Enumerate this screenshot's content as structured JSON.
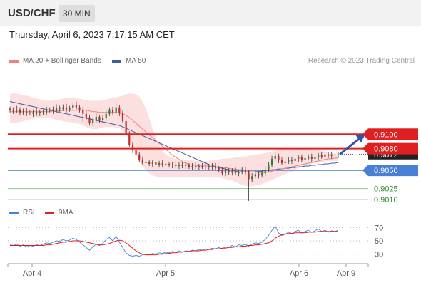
{
  "header": {
    "symbol": "USD/CHF",
    "timeframe": "30 MIN"
  },
  "datetime": "Thursday, April 6, 2023 7:17:15 AM CET",
  "legend": {
    "ma20": "MA 20 + Bollinger Bands",
    "ma50": "MA 50",
    "copyright": "Research © 2023 Trading Central"
  },
  "rsi_legend": {
    "rsi": "RSI",
    "ma": "9MA"
  },
  "colors": {
    "red": "#e02020",
    "blue": "#4a7fd6",
    "green": "#2e8b2e",
    "bb_fill": "#fbd3d3",
    "ma20": "#f08080",
    "ma50": "#3a5fa8",
    "bull": "#2e7d32",
    "bear": "#c62828"
  },
  "chart_data": [
    {
      "type": "candlestick",
      "title": "",
      "x_ticks": [
        "Apr 4",
        "Apr 5",
        "Apr 6",
        "Apr 9"
      ],
      "ylim": [
        0.9,
        0.9175
      ],
      "current_price": "0.9072",
      "levels": [
        {
          "value": 0.91,
          "label": "0.9100",
          "kind": "resistance"
        },
        {
          "value": 0.908,
          "label": "0.9080",
          "kind": "resistance"
        },
        {
          "value": 0.905,
          "label": "0.9050",
          "kind": "pivot"
        },
        {
          "value": 0.9025,
          "label": "0.9025",
          "kind": "support"
        },
        {
          "value": 0.901,
          "label": "0.9010",
          "kind": "support"
        }
      ],
      "closes": [
        0.9133,
        0.9132,
        0.9134,
        0.913,
        0.9131,
        0.9129,
        0.913,
        0.9128,
        0.9131,
        0.9129,
        0.913,
        0.9133,
        0.9134,
        0.9132,
        0.9136,
        0.9135,
        0.9137,
        0.9134,
        0.9136,
        0.914,
        0.9137,
        0.9134,
        0.9128,
        0.9123,
        0.9115,
        0.9119,
        0.9124,
        0.9119,
        0.9122,
        0.9128,
        0.9134,
        0.913,
        0.9137,
        0.9129,
        0.9118,
        0.9101,
        0.9085,
        0.9078,
        0.9072,
        0.9065,
        0.906,
        0.9062,
        0.9059,
        0.9061,
        0.9058,
        0.906,
        0.9057,
        0.9059,
        0.9057,
        0.9058,
        0.9056,
        0.9058,
        0.9056,
        0.9057,
        0.9055,
        0.9056,
        0.9054,
        0.9056,
        0.9055,
        0.9054,
        0.9056,
        0.9055,
        0.9053,
        0.9051,
        0.9046,
        0.905,
        0.9047,
        0.9049,
        0.9046,
        0.9048,
        0.905,
        0.9047,
        0.9038,
        0.9042,
        0.9045,
        0.9043,
        0.9046,
        0.9051,
        0.9058,
        0.9066,
        0.907,
        0.9064,
        0.906,
        0.9062,
        0.9065,
        0.9063,
        0.9066,
        0.9068,
        0.9065,
        0.9067,
        0.9069,
        0.9066,
        0.9068,
        0.9071,
        0.9069,
        0.9072,
        0.907,
        0.9072,
        0.9071,
        0.9072
      ],
      "ma20": [
        0.9131,
        0.9131,
        0.9131,
        0.9131,
        0.9131,
        0.9131,
        0.9131,
        0.9131,
        0.9131,
        0.9131,
        0.9131,
        0.9131,
        0.9131,
        0.9132,
        0.9132,
        0.9132,
        0.9133,
        0.9133,
        0.9133,
        0.9133,
        0.9133,
        0.9133,
        0.9133,
        0.9133,
        0.9132,
        0.9131,
        0.9131,
        0.913,
        0.913,
        0.913,
        0.913,
        0.913,
        0.913,
        0.9129,
        0.9128,
        0.9126,
        0.9123,
        0.9119,
        0.9115,
        0.9111,
        0.9107,
        0.9103,
        0.9099,
        0.9095,
        0.9091,
        0.9087,
        0.9083,
        0.9079,
        0.9075,
        0.9071,
        0.9068,
        0.9065,
        0.9062,
        0.906,
        0.9058,
        0.9057,
        0.9057,
        0.9056,
        0.9056,
        0.9056,
        0.9056,
        0.9055,
        0.9055,
        0.9055,
        0.9054,
        0.9054,
        0.9053,
        0.9052,
        0.9052,
        0.9051,
        0.9051,
        0.905,
        0.9049,
        0.9048,
        0.9048,
        0.9047,
        0.9047,
        0.9047,
        0.9048,
        0.9049,
        0.905,
        0.9051,
        0.9052,
        0.9053,
        0.9054,
        0.9055,
        0.9056,
        0.9057,
        0.9058,
        0.9059,
        0.906,
        0.9061,
        0.9062,
        0.9063,
        0.9064,
        0.9065,
        0.9066,
        0.9066,
        0.9067,
        0.9067
      ],
      "ma50": [
        0.9145,
        0.9144,
        0.9143,
        0.9142,
        0.9141,
        0.914,
        0.9139,
        0.9138,
        0.9137,
        0.9136,
        0.9135,
        0.9134,
        0.9133,
        0.9132,
        0.9131,
        0.913,
        0.9129,
        0.9128,
        0.9127,
        0.9126,
        0.9125,
        0.9124,
        0.9123,
        0.9122,
        0.9121,
        0.912,
        0.9119,
        0.9118,
        0.9117,
        0.9116,
        0.9115,
        0.9114,
        0.9113,
        0.9112,
        0.911,
        0.9108,
        0.9106,
        0.9104,
        0.9102,
        0.91,
        0.9098,
        0.9096,
        0.9094,
        0.9092,
        0.909,
        0.9088,
        0.9086,
        0.9084,
        0.9082,
        0.908,
        0.9078,
        0.9076,
        0.9074,
        0.9072,
        0.907,
        0.9068,
        0.9066,
        0.9064,
        0.9062,
        0.906,
        0.9058,
        0.9057,
        0.9055,
        0.9054,
        0.9053,
        0.9052,
        0.9051,
        0.905,
        0.9049,
        0.9048,
        0.9048,
        0.9048,
        0.9048,
        0.9048,
        0.9048,
        0.9049,
        0.9049,
        0.905,
        0.905,
        0.9051,
        0.9051,
        0.9052,
        0.9052,
        0.9053,
        0.9053,
        0.9054,
        0.9054,
        0.9055,
        0.9055,
        0.9056,
        0.9056,
        0.9057,
        0.9057,
        0.9058,
        0.9058,
        0.9059,
        0.9059,
        0.906,
        0.906,
        0.9061
      ],
      "bb_upper": [
        0.9155,
        0.9156,
        0.9156,
        0.9155,
        0.9154,
        0.9153,
        0.9152,
        0.915,
        0.9149,
        0.9148,
        0.9147,
        0.9146,
        0.9146,
        0.9146,
        0.9147,
        0.9148,
        0.9149,
        0.915,
        0.915,
        0.9151,
        0.915,
        0.9149,
        0.9148,
        0.9147,
        0.9146,
        0.9146,
        0.9146,
        0.9146,
        0.9147,
        0.9148,
        0.9149,
        0.915,
        0.9151,
        0.9152,
        0.9153,
        0.9155,
        0.9156,
        0.9156,
        0.9155,
        0.9152,
        0.9145,
        0.9135,
        0.9122,
        0.9108,
        0.9095,
        0.9084,
        0.9077,
        0.9072,
        0.9069,
        0.9067,
        0.9066,
        0.9065,
        0.9065,
        0.9064,
        0.9064,
        0.9064,
        0.9063,
        0.9063,
        0.9063,
        0.9063,
        0.9063,
        0.9064,
        0.9064,
        0.9065,
        0.9066,
        0.9066,
        0.9067,
        0.9067,
        0.9068,
        0.9068,
        0.9069,
        0.9069,
        0.907,
        0.9071,
        0.9072,
        0.9072,
        0.9073,
        0.9074,
        0.9075,
        0.9076,
        0.9077,
        0.9078,
        0.9079,
        0.9079,
        0.908,
        0.908,
        0.908,
        0.908,
        0.908,
        0.908,
        0.908,
        0.9079,
        0.9079,
        0.9078,
        0.9077,
        0.9076,
        0.9075,
        0.9074,
        0.9073,
        0.9073
      ],
      "bb_lower": [
        0.9115,
        0.9115,
        0.9116,
        0.9117,
        0.9118,
        0.9119,
        0.912,
        0.9121,
        0.9122,
        0.9123,
        0.9123,
        0.9123,
        0.9122,
        0.9121,
        0.912,
        0.9119,
        0.9118,
        0.9117,
        0.9117,
        0.9116,
        0.9115,
        0.9114,
        0.9112,
        0.911,
        0.9108,
        0.9107,
        0.9107,
        0.9108,
        0.9109,
        0.911,
        0.911,
        0.911,
        0.9109,
        0.9108,
        0.9105,
        0.91,
        0.9092,
        0.9082,
        0.9072,
        0.9062,
        0.9055,
        0.905,
        0.9046,
        0.9043,
        0.9041,
        0.904,
        0.904,
        0.904,
        0.904,
        0.904,
        0.904,
        0.9041,
        0.9041,
        0.9041,
        0.9041,
        0.9041,
        0.9041,
        0.9041,
        0.9041,
        0.9041,
        0.9041,
        0.904,
        0.904,
        0.904,
        0.9039,
        0.9038,
        0.9037,
        0.9036,
        0.9034,
        0.9032,
        0.903,
        0.9029,
        0.9028,
        0.9028,
        0.9029,
        0.903,
        0.9031,
        0.9033,
        0.9035,
        0.9037,
        0.9039,
        0.9041,
        0.9043,
        0.9045,
        0.9047,
        0.9049,
        0.9051,
        0.9053,
        0.9055,
        0.9057,
        0.9058,
        0.9059,
        0.906,
        0.9061,
        0.9062,
        0.9062,
        0.9063,
        0.9063,
        0.9063,
        0.9063
      ],
      "forecast_to": 0.91
    },
    {
      "type": "line",
      "title": "",
      "y_ticks": [
        70,
        50,
        30
      ],
      "ylim": [
        20,
        80
      ],
      "series": [
        {
          "name": "RSI",
          "values": [
            44,
            43,
            45,
            42,
            44,
            41,
            43,
            42,
            44,
            43,
            45,
            47,
            46,
            48,
            50,
            49,
            52,
            50,
            51,
            54,
            52,
            48,
            44,
            40,
            36,
            41,
            45,
            43,
            46,
            52,
            55,
            50,
            57,
            48,
            40,
            32,
            28,
            27,
            28,
            27,
            29,
            30,
            29,
            31,
            30,
            32,
            31,
            33,
            32,
            34,
            33,
            35,
            33,
            35,
            34,
            36,
            35,
            37,
            36,
            38,
            37,
            39,
            38,
            40,
            38,
            41,
            40,
            43,
            41,
            44,
            43,
            45,
            42,
            45,
            47,
            46,
            48,
            52,
            58,
            66,
            72,
            62,
            58,
            60,
            63,
            61,
            64,
            66,
            62,
            64,
            66,
            63,
            65,
            68,
            64,
            66,
            63,
            65,
            64,
            66
          ]
        },
        {
          "name": "9MA",
          "values": [
            43,
            43,
            43,
            43,
            43,
            43,
            43,
            43,
            43,
            43,
            43,
            44,
            44,
            45,
            46,
            47,
            48,
            48,
            49,
            50,
            50,
            50,
            49,
            48,
            47,
            46,
            45,
            44,
            44,
            45,
            46,
            48,
            50,
            51,
            50,
            47,
            43,
            39,
            35,
            32,
            30,
            29,
            29,
            29,
            29,
            30,
            30,
            31,
            31,
            32,
            32,
            33,
            33,
            34,
            34,
            35,
            35,
            35,
            36,
            36,
            37,
            37,
            38,
            38,
            39,
            39,
            40,
            40,
            41,
            41,
            42,
            42,
            43,
            43,
            44,
            44,
            45,
            46,
            47,
            50,
            54,
            57,
            59,
            60,
            61,
            61,
            62,
            62,
            62,
            62,
            63,
            63,
            63,
            64,
            64,
            64,
            64,
            64,
            64,
            64
          ]
        }
      ]
    }
  ]
}
